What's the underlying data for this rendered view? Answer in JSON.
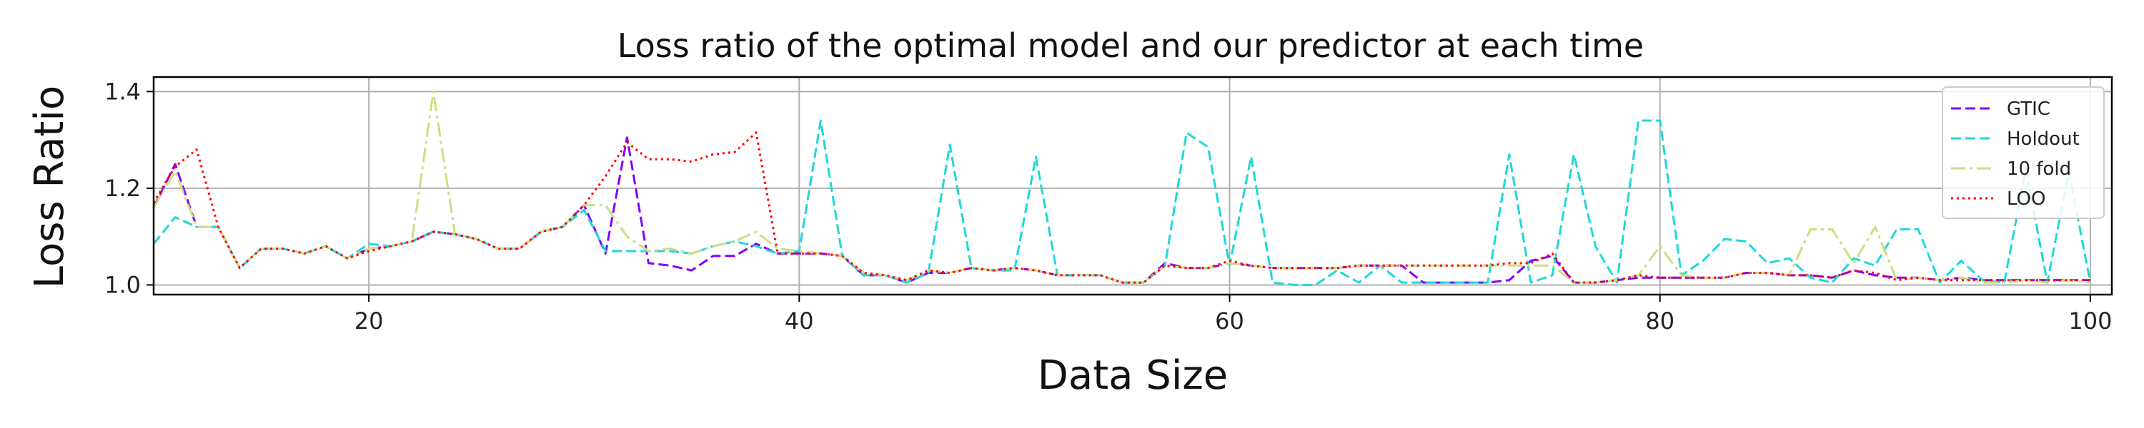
{
  "chart_data": {
    "type": "line",
    "title": "Loss ratio of the optimal model and our predictor at each time",
    "xlabel": "Data Size",
    "ylabel": "Loss Ratio",
    "xlim": [
      10,
      101
    ],
    "ylim": [
      0.98,
      1.43
    ],
    "xticks": [
      20,
      40,
      60,
      80,
      100
    ],
    "yticks": [
      1.0,
      1.2,
      1.4
    ],
    "ytick_labels": [
      "1.0",
      "1.2",
      "1.4"
    ],
    "grid": true,
    "legend_position": "upper-right",
    "x": [
      10,
      11,
      12,
      13,
      14,
      15,
      16,
      17,
      18,
      19,
      20,
      21,
      22,
      23,
      24,
      25,
      26,
      27,
      28,
      29,
      30,
      31,
      32,
      33,
      34,
      35,
      36,
      37,
      38,
      39,
      40,
      41,
      42,
      43,
      44,
      45,
      46,
      47,
      48,
      49,
      50,
      51,
      52,
      53,
      54,
      55,
      56,
      57,
      58,
      59,
      60,
      61,
      62,
      63,
      64,
      65,
      66,
      67,
      68,
      69,
      70,
      71,
      72,
      73,
      74,
      75,
      76,
      77,
      78,
      79,
      80,
      81,
      82,
      83,
      84,
      85,
      86,
      87,
      88,
      89,
      90,
      91,
      92,
      93,
      94,
      95,
      96,
      97,
      98,
      99,
      100
    ],
    "series": [
      {
        "name": "GTIC",
        "color": "#7f00ff",
        "dash": "dashed",
        "values": [
          1.16,
          1.25,
          1.12,
          1.12,
          1.035,
          1.075,
          1.075,
          1.065,
          1.08,
          1.055,
          1.075,
          1.08,
          1.09,
          1.11,
          1.105,
          1.095,
          1.075,
          1.075,
          1.11,
          1.12,
          1.165,
          1.065,
          1.305,
          1.045,
          1.04,
          1.03,
          1.06,
          1.06,
          1.085,
          1.065,
          1.065,
          1.065,
          1.06,
          1.02,
          1.02,
          1.005,
          1.025,
          1.025,
          1.035,
          1.03,
          1.035,
          1.03,
          1.02,
          1.02,
          1.02,
          1.005,
          1.005,
          1.045,
          1.035,
          1.035,
          1.045,
          1.04,
          1.035,
          1.035,
          1.035,
          1.035,
          1.04,
          1.04,
          1.04,
          1.005,
          1.005,
          1.005,
          1.005,
          1.01,
          1.05,
          1.06,
          1.005,
          1.005,
          1.01,
          1.015,
          1.015,
          1.015,
          1.015,
          1.015,
          1.025,
          1.025,
          1.02,
          1.02,
          1.015,
          1.03,
          1.02,
          1.015,
          1.015,
          1.01,
          1.015,
          1.01,
          1.01,
          1.01,
          1.01,
          1.01,
          1.01
        ]
      },
      {
        "name": "Holdout",
        "color": "#1ed8d8",
        "dash": "dashed",
        "values": [
          1.085,
          1.14,
          1.12,
          1.12,
          1.035,
          1.075,
          1.075,
          1.065,
          1.08,
          1.055,
          1.085,
          1.08,
          1.09,
          1.11,
          1.105,
          1.095,
          1.075,
          1.075,
          1.11,
          1.12,
          1.155,
          1.07,
          1.07,
          1.07,
          1.07,
          1.065,
          1.08,
          1.09,
          1.08,
          1.065,
          1.07,
          1.34,
          1.06,
          1.02,
          1.02,
          1.005,
          1.025,
          1.29,
          1.035,
          1.03,
          1.03,
          1.265,
          1.02,
          1.02,
          1.02,
          1.005,
          1.005,
          1.04,
          1.315,
          1.285,
          1.04,
          1.265,
          1.005,
          1.0,
          1.0,
          1.03,
          1.005,
          1.04,
          1.005,
          1.005,
          1.005,
          1.005,
          1.005,
          1.27,
          1.005,
          1.02,
          1.27,
          1.08,
          1.005,
          1.34,
          1.34,
          1.02,
          1.05,
          1.095,
          1.09,
          1.045,
          1.055,
          1.015,
          1.005,
          1.055,
          1.04,
          1.115,
          1.115,
          1.005,
          1.05,
          1.01,
          1.005,
          1.24,
          1.005,
          1.235,
          1.005
        ]
      },
      {
        "name": "10 fold",
        "color": "#cadf7f",
        "dash": "dashdot",
        "values": [
          1.16,
          1.235,
          1.12,
          1.12,
          1.035,
          1.075,
          1.075,
          1.065,
          1.08,
          1.055,
          1.075,
          1.08,
          1.09,
          1.4,
          1.105,
          1.095,
          1.075,
          1.075,
          1.11,
          1.12,
          1.165,
          1.165,
          1.1,
          1.07,
          1.075,
          1.065,
          1.08,
          1.09,
          1.11,
          1.075,
          1.07,
          1.065,
          1.06,
          1.025,
          1.02,
          1.01,
          1.03,
          1.025,
          1.035,
          1.03,
          1.035,
          1.03,
          1.02,
          1.02,
          1.02,
          1.005,
          1.005,
          1.04,
          1.035,
          1.035,
          1.045,
          1.04,
          1.035,
          1.035,
          1.035,
          1.035,
          1.04,
          1.04,
          1.04,
          1.04,
          1.04,
          1.04,
          1.04,
          1.04,
          1.04,
          1.04,
          1.005,
          1.005,
          1.01,
          1.02,
          1.08,
          1.02,
          1.015,
          1.015,
          1.025,
          1.025,
          1.02,
          1.115,
          1.115,
          1.045,
          1.12,
          1.01,
          1.015,
          1.01,
          1.015,
          1.005,
          1.005,
          1.01,
          1.005,
          1.01,
          1.005
        ]
      },
      {
        "name": "LOO",
        "color": "#ff0000",
        "dash": "dotted",
        "values": [
          1.17,
          1.245,
          1.28,
          1.12,
          1.035,
          1.075,
          1.075,
          1.065,
          1.08,
          1.055,
          1.07,
          1.08,
          1.09,
          1.11,
          1.105,
          1.095,
          1.075,
          1.075,
          1.11,
          1.12,
          1.165,
          1.225,
          1.295,
          1.26,
          1.26,
          1.255,
          1.27,
          1.275,
          1.315,
          1.065,
          1.065,
          1.065,
          1.06,
          1.025,
          1.02,
          1.01,
          1.03,
          1.025,
          1.035,
          1.03,
          1.035,
          1.03,
          1.02,
          1.02,
          1.02,
          1.005,
          1.005,
          1.04,
          1.035,
          1.035,
          1.05,
          1.04,
          1.035,
          1.035,
          1.035,
          1.035,
          1.04,
          1.04,
          1.04,
          1.04,
          1.04,
          1.04,
          1.04,
          1.045,
          1.045,
          1.065,
          1.005,
          1.005,
          1.01,
          1.02,
          1.015,
          1.015,
          1.015,
          1.015,
          1.025,
          1.025,
          1.02,
          1.02,
          1.015,
          1.03,
          1.025,
          1.01,
          1.015,
          1.01,
          1.01,
          1.01,
          1.01,
          1.01,
          1.01,
          1.01,
          1.01
        ]
      }
    ]
  }
}
